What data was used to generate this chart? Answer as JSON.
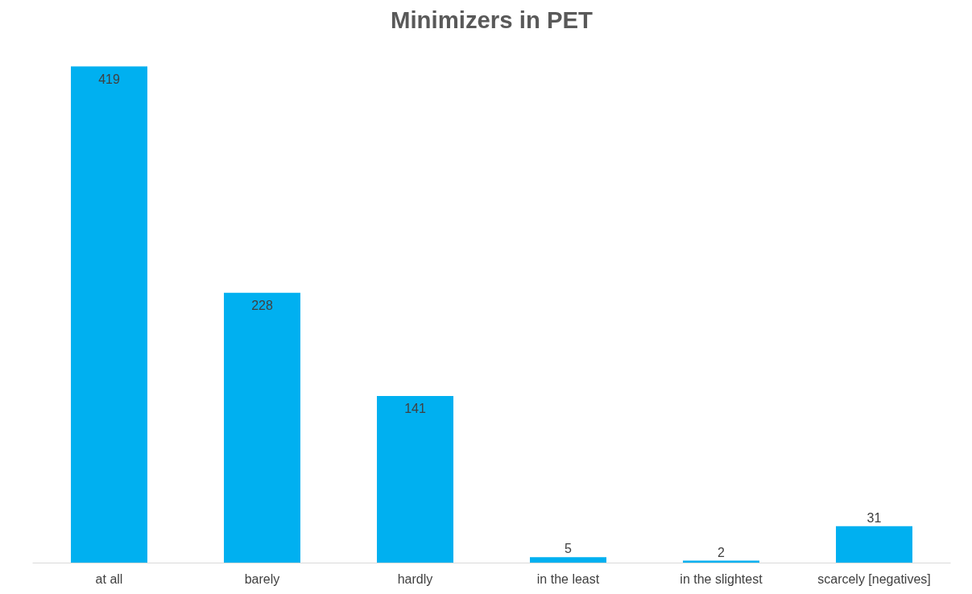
{
  "chart_data": {
    "type": "bar",
    "title": "Minimizers in PET",
    "categories": [
      "at all",
      "barely",
      "hardly",
      "in the least",
      "in the slightest",
      "scarcely [negatives]"
    ],
    "values": [
      419,
      228,
      141,
      5,
      2,
      31
    ],
    "color": "#00b0f0",
    "data_labels": true
  }
}
